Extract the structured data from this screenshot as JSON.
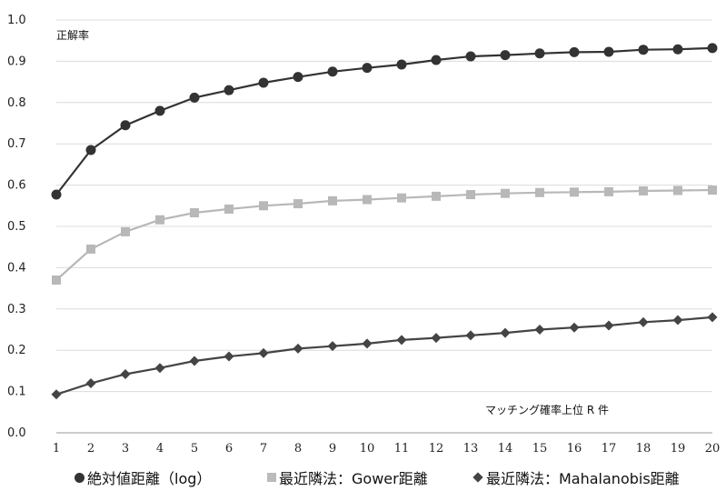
{
  "chart_data": {
    "type": "line",
    "ylabel": "正解率",
    "xlabel": "マッチング確率上位 R 件",
    "ylim": [
      0.0,
      1.0
    ],
    "yticks": [
      "0.0",
      "0.1",
      "0.2",
      "0.3",
      "0.4",
      "0.5",
      "0.6",
      "0.7",
      "0.8",
      "0.9",
      "1.0"
    ],
    "x": [
      1,
      2,
      3,
      4,
      5,
      6,
      7,
      8,
      9,
      10,
      11,
      12,
      13,
      14,
      15,
      16,
      17,
      18,
      19,
      20
    ],
    "grid": true,
    "legend_position": "bottom",
    "series": [
      {
        "name": "絶対値距離（log）",
        "marker": "circle",
        "color": "#333333",
        "values": [
          0.577,
          0.685,
          0.745,
          0.78,
          0.812,
          0.83,
          0.848,
          0.862,
          0.875,
          0.884,
          0.892,
          0.903,
          0.912,
          0.915,
          0.919,
          0.922,
          0.923,
          0.928,
          0.929,
          0.932
        ]
      },
      {
        "name": "最近隣法：Gower距離",
        "marker": "square",
        "color": "#b8b8b8",
        "values": [
          0.37,
          0.445,
          0.487,
          0.516,
          0.533,
          0.542,
          0.55,
          0.555,
          0.562,
          0.565,
          0.569,
          0.573,
          0.577,
          0.58,
          0.582,
          0.583,
          0.584,
          0.586,
          0.587,
          0.588
        ]
      },
      {
        "name": "最近隣法：Mahalanobis距離",
        "marker": "diamond",
        "color": "#444444",
        "values": [
          0.093,
          0.12,
          0.142,
          0.157,
          0.174,
          0.185,
          0.193,
          0.204,
          0.21,
          0.216,
          0.225,
          0.23,
          0.236,
          0.242,
          0.25,
          0.255,
          0.26,
          0.268,
          0.273,
          0.28
        ]
      }
    ]
  }
}
